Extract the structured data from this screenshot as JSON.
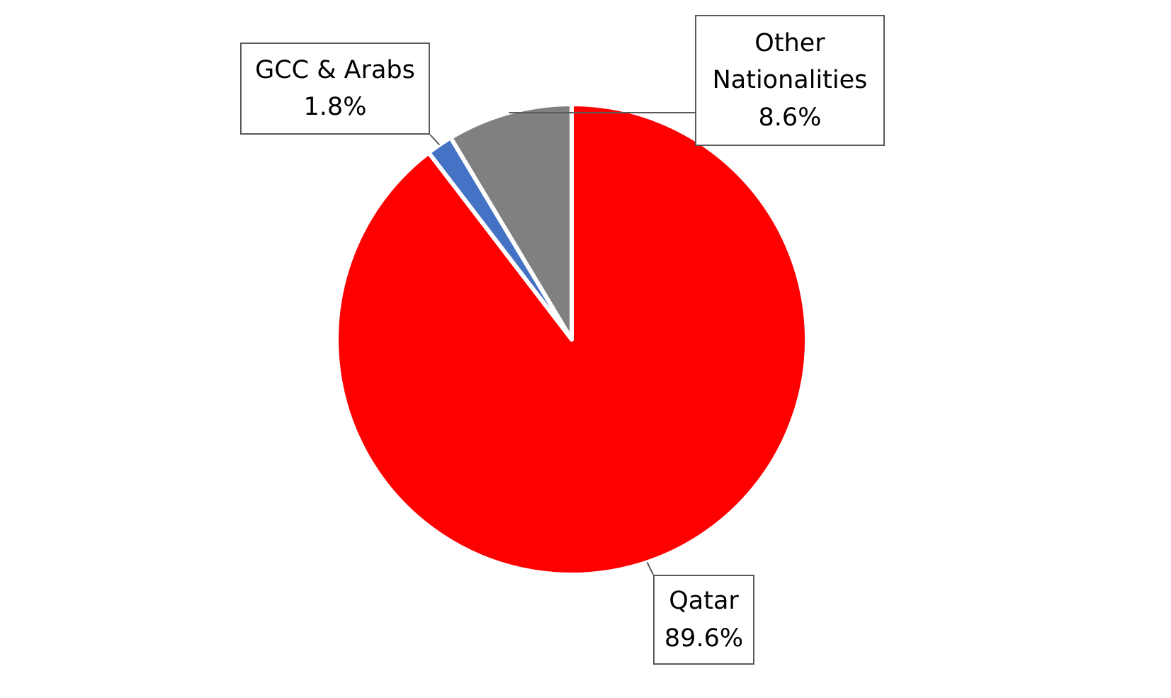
{
  "chart_data": {
    "type": "pie",
    "categories": [
      "Qatar",
      "GCC & Arabs",
      "Other Nationalities"
    ],
    "values": [
      89.6,
      1.8,
      8.6
    ],
    "value_labels": [
      "89.6%",
      "1.8%",
      "8.6%"
    ],
    "colors": [
      "#ff0000",
      "#4472c4",
      "#808080"
    ]
  }
}
